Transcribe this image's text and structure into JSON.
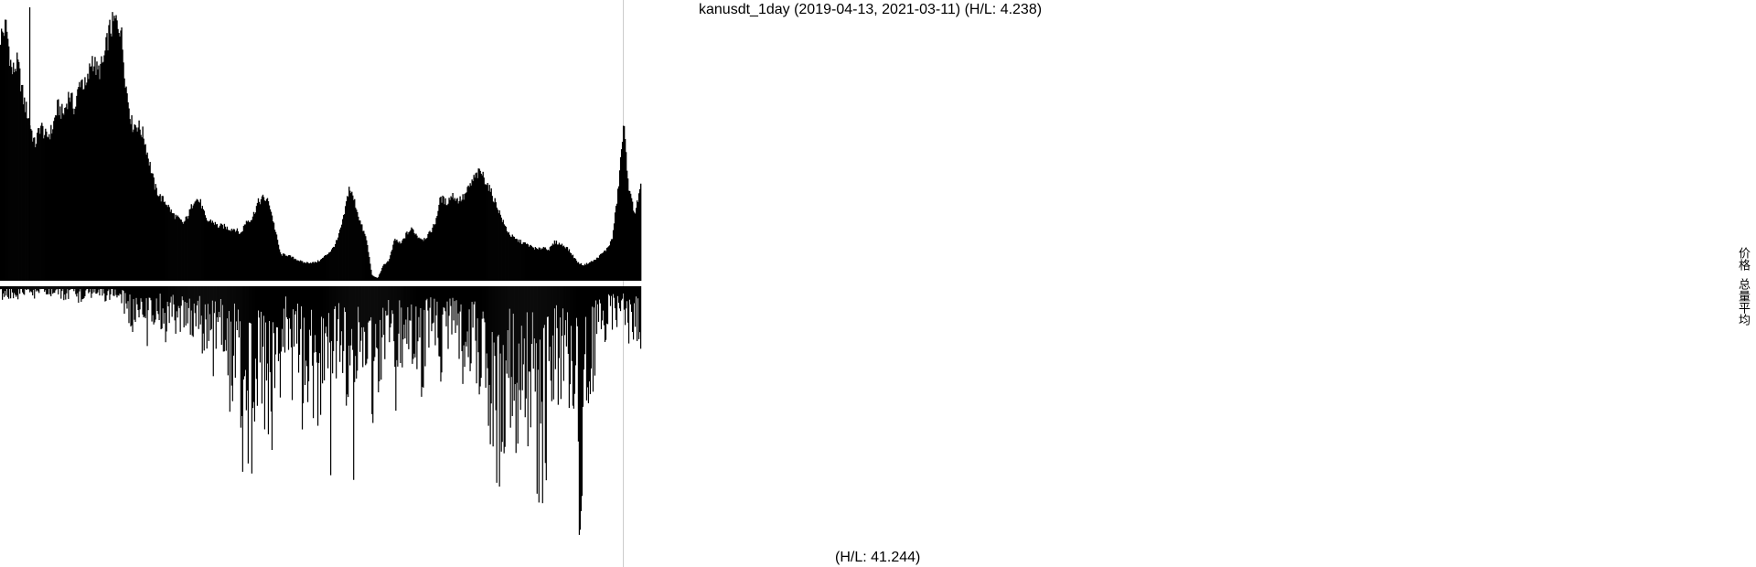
{
  "chart_data": {
    "type": "bar",
    "title": "kanusdt_1day (2019-04-13, 2021-03-11) (H/L: 4.238)",
    "secondary_label": "(H/L: 41.244)",
    "x_range": [
      "2019-04-13",
      "2021-03-11"
    ],
    "legend": [
      "价格",
      "总量平均"
    ],
    "grid": false,
    "colors": {
      "bars": "#000000",
      "background": "#ffffff",
      "marker_line": "#cccccc"
    },
    "series": [
      {
        "name": "价格",
        "hl_ratio": 4.238,
        "envelope": [
          0.94,
          0.98,
          0.8,
          0.84,
          0.7,
          0.62,
          0.52,
          0.6,
          0.55,
          0.58,
          0.67,
          0.64,
          0.72,
          0.66,
          0.78,
          0.74,
          0.86,
          0.8,
          0.84,
          0.96,
          1.0,
          0.98,
          0.74,
          0.6,
          0.6,
          0.56,
          0.46,
          0.36,
          0.32,
          0.3,
          0.26,
          0.24,
          0.22,
          0.26,
          0.32,
          0.3,
          0.23,
          0.23,
          0.21,
          0.21,
          0.2,
          0.2,
          0.18,
          0.23,
          0.24,
          0.3,
          0.32,
          0.3,
          0.2,
          0.1,
          0.1,
          0.09,
          0.08,
          0.07,
          0.07,
          0.07,
          0.08,
          0.1,
          0.12,
          0.16,
          0.24,
          0.36,
          0.3,
          0.22,
          0.16,
          0.02,
          0.01,
          0.06,
          0.08,
          0.16,
          0.14,
          0.18,
          0.2,
          0.17,
          0.16,
          0.18,
          0.22,
          0.32,
          0.3,
          0.33,
          0.31,
          0.32,
          0.36,
          0.4,
          0.42,
          0.38,
          0.33,
          0.28,
          0.22,
          0.18,
          0.16,
          0.15,
          0.14,
          0.13,
          0.12,
          0.13,
          0.12,
          0.15,
          0.14,
          0.13,
          0.1,
          0.07,
          0.06,
          0.07,
          0.08,
          0.1,
          0.12,
          0.16,
          0.34,
          0.6,
          0.34,
          0.26,
          0.36
        ],
        "spikes": [
          {
            "x": "2019-05-15",
            "value": 1.0
          }
        ]
      },
      {
        "name": "总量平均",
        "hl_ratio": 41.244,
        "envelope": [
          0.06,
          0.05,
          0.05,
          0.05,
          0.04,
          0.05,
          0.05,
          0.04,
          0.04,
          0.04,
          0.04,
          0.05,
          0.06,
          0.04,
          0.07,
          0.04,
          0.05,
          0.04,
          0.05,
          0.06,
          0.04,
          0.06,
          0.1,
          0.18,
          0.2,
          0.12,
          0.22,
          0.24,
          0.14,
          0.22,
          0.26,
          0.16,
          0.28,
          0.18,
          0.3,
          0.2,
          0.26,
          0.32,
          0.36,
          0.24,
          0.44,
          0.5,
          0.36,
          0.68,
          0.72,
          0.82,
          0.56,
          0.64,
          0.66,
          0.7,
          0.34,
          0.22,
          0.56,
          0.32,
          0.6,
          0.4,
          0.56,
          0.62,
          0.44,
          0.76,
          0.3,
          0.54,
          0.42,
          0.86,
          0.34,
          0.52,
          0.76,
          0.36,
          0.48,
          0.24,
          0.58,
          0.3,
          0.5,
          0.46,
          0.32,
          0.52,
          0.28,
          0.26,
          0.36,
          0.5,
          0.26,
          0.3,
          0.38,
          0.46,
          0.32,
          0.4,
          0.42,
          0.58,
          0.82,
          0.78,
          0.56,
          0.54,
          0.66,
          0.6,
          0.62,
          0.64,
          0.88,
          0.8,
          0.58,
          0.46,
          0.48,
          0.44,
          0.5,
          0.98,
          0.66,
          0.44,
          0.34,
          0.24,
          0.2,
          0.18,
          0.14,
          0.18,
          0.22,
          0.24,
          0.26
        ]
      }
    ]
  }
}
